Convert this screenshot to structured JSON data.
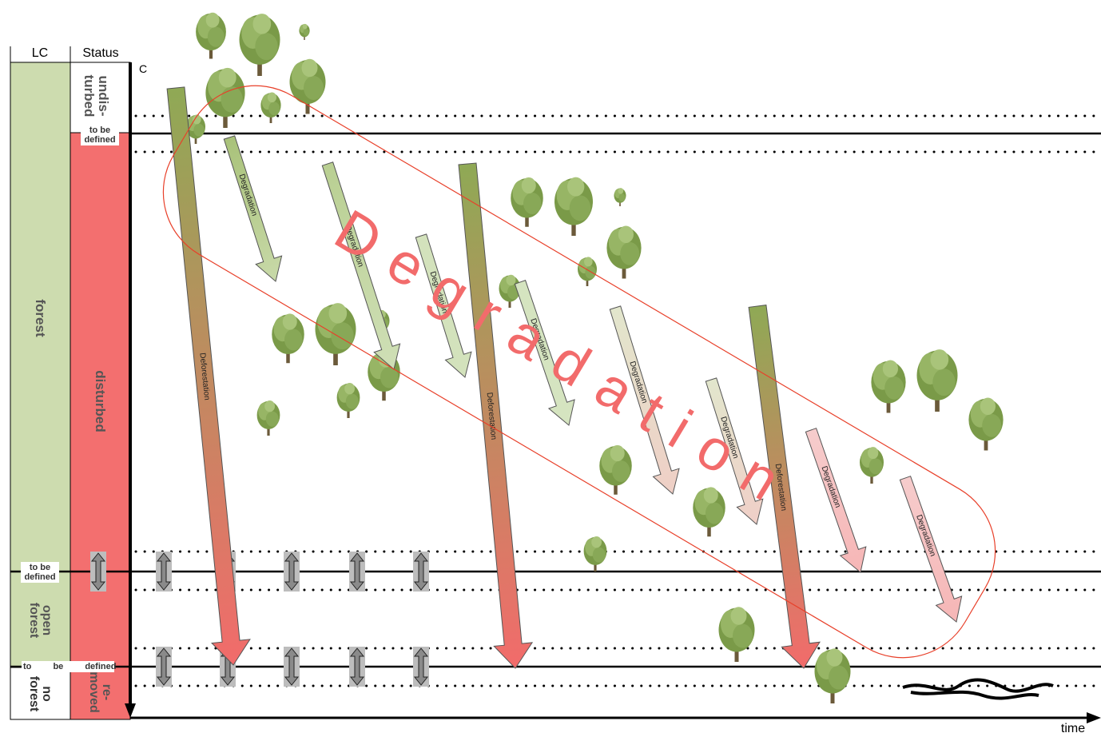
{
  "header": {
    "lc": "LC",
    "status": "Status"
  },
  "axes": {
    "y": "C",
    "x": "time"
  },
  "lc": {
    "forest": "forest",
    "to_be_defined_1": "to be defined",
    "open_forest": "open forest",
    "to_be_defined_2": "to be defined",
    "no_forest": "no forest"
  },
  "status": {
    "undisturbed": "undis- turbed",
    "to_be_defined": "to be defined",
    "disturbed": "disturbed",
    "removed": "re- moved"
  },
  "overlay": "Degradation",
  "arrows": [
    {
      "label": "Deforestation"
    },
    {
      "label": "Degradation"
    },
    {
      "label": "Degradation"
    },
    {
      "label": "Degradation"
    },
    {
      "label": "Deforestation"
    },
    {
      "label": "Degradation"
    },
    {
      "label": "Degradation"
    },
    {
      "label": "Degradation"
    },
    {
      "label": "Deforestation"
    },
    {
      "label": "Degradation"
    },
    {
      "label": "Degradation"
    }
  ]
}
